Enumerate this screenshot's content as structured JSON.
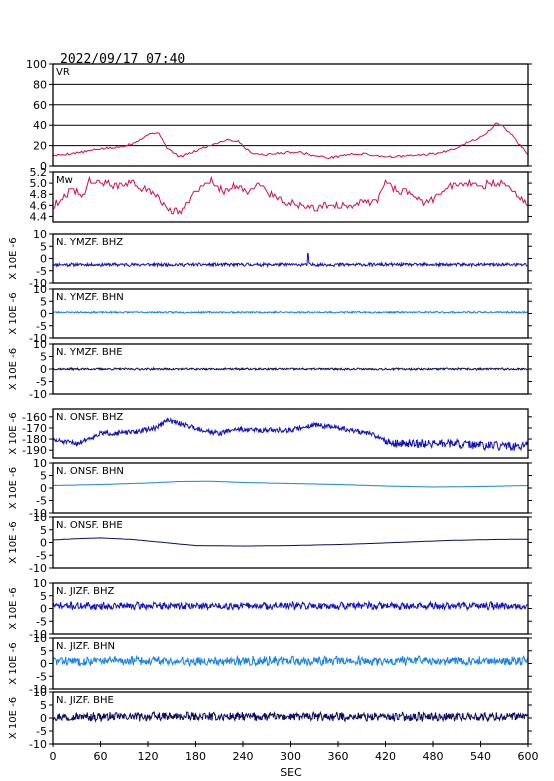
{
  "header": {
    "datetime": "2022/09/17 07:40"
  },
  "chart_data": {
    "type": "line",
    "xlabel": "SEC",
    "xlim": [
      0,
      600
    ],
    "xticks": [
      "0",
      "60",
      "120",
      "180",
      "240",
      "300",
      "360",
      "420",
      "480",
      "540",
      "600"
    ],
    "panels": [
      {
        "label": "VR",
        "ylabel": "",
        "ylim": [
          0,
          100
        ],
        "yticks": [
          "100",
          "80",
          "60",
          "40",
          "20",
          "0"
        ],
        "grid": true,
        "color": "#d01050",
        "kind": "vr",
        "x": [
          0,
          20,
          40,
          60,
          80,
          100,
          115,
          125,
          135,
          145,
          160,
          175,
          190,
          205,
          220,
          235,
          245,
          255,
          270,
          290,
          310,
          330,
          350,
          370,
          390,
          410,
          430,
          450,
          470,
          490,
          510,
          520,
          530,
          540,
          550,
          560,
          570,
          580,
          590,
          600
        ],
        "y": [
          10,
          12,
          14,
          17,
          18,
          22,
          28,
          33,
          31,
          17,
          9,
          13,
          18,
          22,
          26,
          24,
          16,
          12,
          11,
          13,
          14,
          10,
          8,
          11,
          12,
          10,
          9,
          10,
          11,
          13,
          18,
          22,
          25,
          28,
          34,
          42,
          38,
          30,
          20,
          12
        ]
      },
      {
        "label": "Mw",
        "ylabel": "",
        "ylim": [
          4.3,
          5.2
        ],
        "yticks": [
          "5.2",
          "5.0",
          "4.8",
          "4.6",
          "4.4"
        ],
        "grid": false,
        "color": "#d01050",
        "kind": "mw",
        "x": [
          0,
          10,
          25,
          40,
          45,
          60,
          80,
          100,
          115,
          130,
          140,
          150,
          160,
          170,
          180,
          190,
          200,
          210,
          220,
          230,
          240,
          250,
          260,
          270,
          290,
          310,
          330,
          350,
          370,
          390,
          410,
          420,
          430,
          450,
          470,
          480,
          500,
          520,
          540,
          560,
          575,
          590,
          600
        ],
        "y": [
          4.6,
          4.7,
          4.9,
          4.75,
          5.05,
          5.0,
          4.95,
          5.0,
          4.9,
          4.8,
          4.6,
          4.5,
          4.45,
          4.7,
          4.85,
          4.95,
          5.05,
          4.9,
          4.85,
          4.95,
          4.9,
          4.85,
          5.0,
          4.85,
          4.7,
          4.6,
          4.55,
          4.6,
          4.6,
          4.65,
          4.7,
          5.05,
          4.9,
          4.8,
          4.65,
          4.7,
          4.95,
          5.0,
          4.95,
          5.0,
          4.95,
          4.75,
          4.6
        ]
      },
      {
        "label": "N. YMZF. BHZ",
        "ylabel": "X 10E -6",
        "ylim": [
          -10,
          10
        ],
        "yticks": [
          "10",
          "5",
          "0",
          "-5",
          "-10"
        ],
        "color": "#1010c0",
        "kind": "noise",
        "offset": -2.5,
        "amp": 0.6,
        "seed": 11,
        "spike": {
          "x": 322,
          "y": 2
        }
      },
      {
        "label": "N. YMZF. BHN",
        "ylabel": "X 10E -6",
        "ylim": [
          -10,
          10
        ],
        "yticks": [
          "10",
          "5",
          "0",
          "-5",
          "-10"
        ],
        "color": "#1a82e6",
        "kind": "noise",
        "offset": 0.5,
        "amp": 0.3,
        "seed": 23
      },
      {
        "label": "N. YMZF. BHE",
        "ylabel": "X 10E -6",
        "ylim": [
          -10,
          10
        ],
        "yticks": [
          "10",
          "5",
          "0",
          "-5",
          "-10"
        ],
        "color": "#0c0c60",
        "kind": "noise",
        "offset": 0.0,
        "amp": 0.35,
        "seed": 37
      },
      {
        "label": "N. ONSF. BHZ",
        "ylabel": "X 10E -6",
        "ylim": [
          -197,
          -153
        ],
        "yticks": [
          "-160",
          "-170",
          "-180",
          "-190"
        ],
        "color": "#1010c0",
        "kind": "drift",
        "amp": 2.2,
        "seed": 51,
        "x": [
          0,
          30,
          60,
          100,
          130,
          145,
          165,
          190,
          210,
          230,
          260,
          300,
          330,
          360,
          400,
          430,
          460,
          500,
          540,
          560,
          580,
          600
        ],
        "y": [
          -181,
          -184,
          -175,
          -174,
          -170,
          -163,
          -167,
          -172,
          -175,
          -171,
          -172,
          -172,
          -167,
          -170,
          -175,
          -184,
          -184,
          -184,
          -186,
          -186,
          -187,
          -186
        ]
      },
      {
        "label": "N. ONSF. BHN",
        "ylabel": "X 10E -6",
        "ylim": [
          -10,
          10
        ],
        "yticks": [
          "10",
          "5",
          "0",
          "-5",
          "-10"
        ],
        "color": "#1a82e6",
        "kind": "smooth",
        "x": [
          0,
          60,
          120,
          160,
          200,
          240,
          300,
          360,
          420,
          480,
          540,
          600
        ],
        "y": [
          1.0,
          1.4,
          2.0,
          2.6,
          2.7,
          2.2,
          1.8,
          1.4,
          0.8,
          0.4,
          0.6,
          1.0
        ]
      },
      {
        "label": "N. ONSF. BHE",
        "ylabel": "X 10E -6",
        "ylim": [
          -10,
          10
        ],
        "yticks": [
          "10",
          "5",
          "0",
          "-5",
          "-10"
        ],
        "color": "#0c0c60",
        "kind": "smooth",
        "x": [
          0,
          30,
          60,
          100,
          140,
          180,
          240,
          300,
          360,
          400,
          450,
          500,
          560,
          600
        ],
        "y": [
          1.0,
          1.5,
          1.8,
          1.2,
          0.0,
          -1.2,
          -1.4,
          -1.2,
          -0.8,
          -0.4,
          0.2,
          0.8,
          1.2,
          1.3
        ]
      },
      {
        "label": "N. JIZF. BHZ",
        "ylabel": "X 10E -6",
        "ylim": [
          -10,
          10
        ],
        "yticks": [
          "10",
          "5",
          "0",
          "-5",
          "-10"
        ],
        "color": "#1010c0",
        "kind": "noise",
        "offset": 1.0,
        "amp": 1.3,
        "seed": 71
      },
      {
        "label": "N. JIZF. BHN",
        "ylabel": "X 10E -6",
        "ylim": [
          -10,
          10
        ],
        "yticks": [
          "10",
          "5",
          "0",
          "-5",
          "-10"
        ],
        "color": "#1a82e6",
        "kind": "noise",
        "offset": 1.0,
        "amp": 1.6,
        "seed": 83
      },
      {
        "label": "N. JIZF. BHE",
        "ylabel": "X 10E -6",
        "ylim": [
          -10,
          10
        ],
        "yticks": [
          "10",
          "5",
          "0",
          "-5",
          "-10"
        ],
        "color": "#0c0c60",
        "kind": "noise",
        "offset": 0.5,
        "amp": 1.5,
        "seed": 97
      }
    ]
  }
}
